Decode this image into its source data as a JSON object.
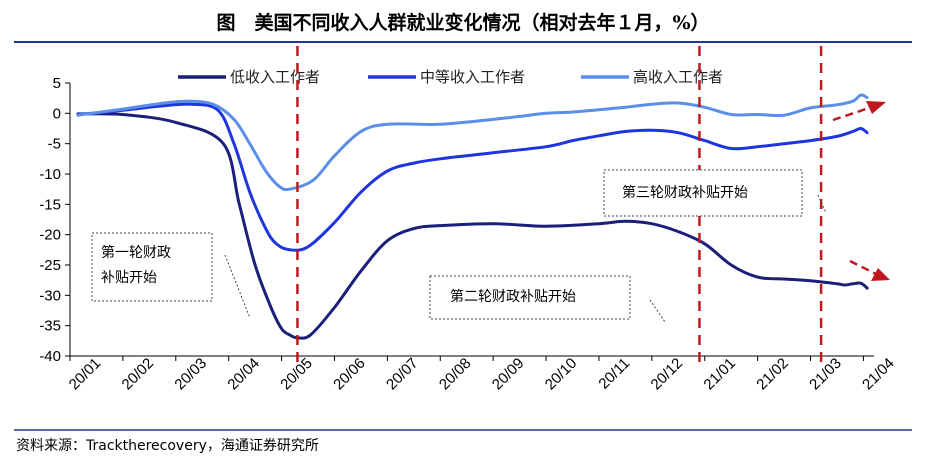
{
  "header": {
    "title": "图　美国不同收入人群就业变化情况（相对去年１月，%）"
  },
  "footer": {
    "source": "资料来源：Tracktherecovery，海通证券研究所"
  },
  "colors": {
    "low": "#1a1f7a",
    "mid": "#1f35e0",
    "high": "#5a8ee8",
    "marker": "#c0181c",
    "rule": "#1f3a8a"
  },
  "chart_data": {
    "type": "line",
    "ylim": [
      -40,
      5
    ],
    "yticks": [
      5,
      0,
      -5,
      -10,
      -15,
      -20,
      -25,
      -30,
      -35,
      -40
    ],
    "xlim": [
      0,
      15.2
    ],
    "xticks": [
      "20/01",
      "20/02",
      "20/03",
      "20/04",
      "20/05",
      "20/06",
      "20/07",
      "20/08",
      "20/09",
      "20/10",
      "20/11",
      "20/12",
      "21/01",
      "21/02",
      "21/03",
      "21/04"
    ],
    "grid": false,
    "legend_position": "top",
    "series": [
      {
        "name": "低收入工作者",
        "key": "low",
        "x": [
          0.15,
          1.0,
          2.0,
          2.9,
          3.2,
          3.5,
          3.8,
          4.0,
          4.15,
          4.3,
          4.55,
          5.0,
          5.5,
          6.0,
          6.5,
          7.0,
          8.0,
          9.0,
          10.0,
          10.5,
          11.0,
          11.5,
          12.0,
          12.5,
          13.0,
          13.5,
          14.0,
          14.5,
          14.65,
          14.8,
          14.95,
          15.07
        ],
        "y": [
          -0.1,
          -0.2,
          -1.5,
          -5,
          -15,
          -25,
          -32,
          -35.5,
          -36.5,
          -37,
          -36.5,
          -32,
          -26,
          -21,
          -19,
          -18.5,
          -18.2,
          -18.6,
          -18.2,
          -17.8,
          -18.2,
          -19.5,
          -21.5,
          -25,
          -27,
          -27.3,
          -27.6,
          -28.1,
          -28.3,
          -28.1,
          -28,
          -28.8
        ]
      },
      {
        "name": "中等收入工作者",
        "key": "mid",
        "x": [
          0.15,
          1.0,
          1.7,
          2.3,
          2.8,
          3.1,
          3.4,
          3.7,
          3.9,
          4.15,
          4.5,
          5.0,
          5.5,
          6.0,
          6.5,
          7.0,
          8.0,
          9.0,
          9.5,
          10.0,
          10.5,
          11.0,
          11.5,
          12.0,
          12.5,
          13.0,
          13.5,
          14.0,
          14.5,
          14.8,
          14.95,
          15.07
        ],
        "y": [
          -0.2,
          0.5,
          1.2,
          1.5,
          0.5,
          -5,
          -13,
          -19,
          -21.5,
          -22.5,
          -22,
          -18,
          -13,
          -9.5,
          -8.2,
          -7.5,
          -6.5,
          -5.5,
          -4.5,
          -3.7,
          -3,
          -2.8,
          -3.2,
          -4.5,
          -5.8,
          -5.5,
          -5,
          -4.5,
          -3.8,
          -3,
          -2.5,
          -3.2
        ]
      },
      {
        "name": "高收入工作者",
        "key": "high",
        "x": [
          0.15,
          1.0,
          1.7,
          2.2,
          2.7,
          3.1,
          3.4,
          3.7,
          3.95,
          4.15,
          4.6,
          5.0,
          5.5,
          6.0,
          7.0,
          8.0,
          8.5,
          9.0,
          9.5,
          10.0,
          10.5,
          11.0,
          11.5,
          12.0,
          12.5,
          13.0,
          13.5,
          14.0,
          14.5,
          14.8,
          14.95,
          15.07
        ],
        "y": [
          -0.3,
          0.7,
          1.6,
          2.0,
          1.5,
          -1,
          -5,
          -9.5,
          -12,
          -12.5,
          -11,
          -7,
          -3,
          -1.8,
          -1.8,
          -1.0,
          -0.5,
          0,
          0.2,
          0.6,
          1.0,
          1.5,
          1.7,
          1.0,
          -0.2,
          -0.2,
          -0.3,
          0.9,
          1.4,
          2.0,
          3.0,
          2.6
        ]
      }
    ],
    "event_markers": [
      {
        "x": 4.3
      },
      {
        "x": 11.9
      },
      {
        "x": 14.2
      }
    ],
    "annotations": [
      {
        "lines": [
          "第一轮财政",
          "补贴开始"
        ]
      },
      {
        "lines": [
          "第二轮财政补贴开始"
        ]
      },
      {
        "lines": [
          "第三轮财政补贴开始"
        ]
      }
    ]
  }
}
